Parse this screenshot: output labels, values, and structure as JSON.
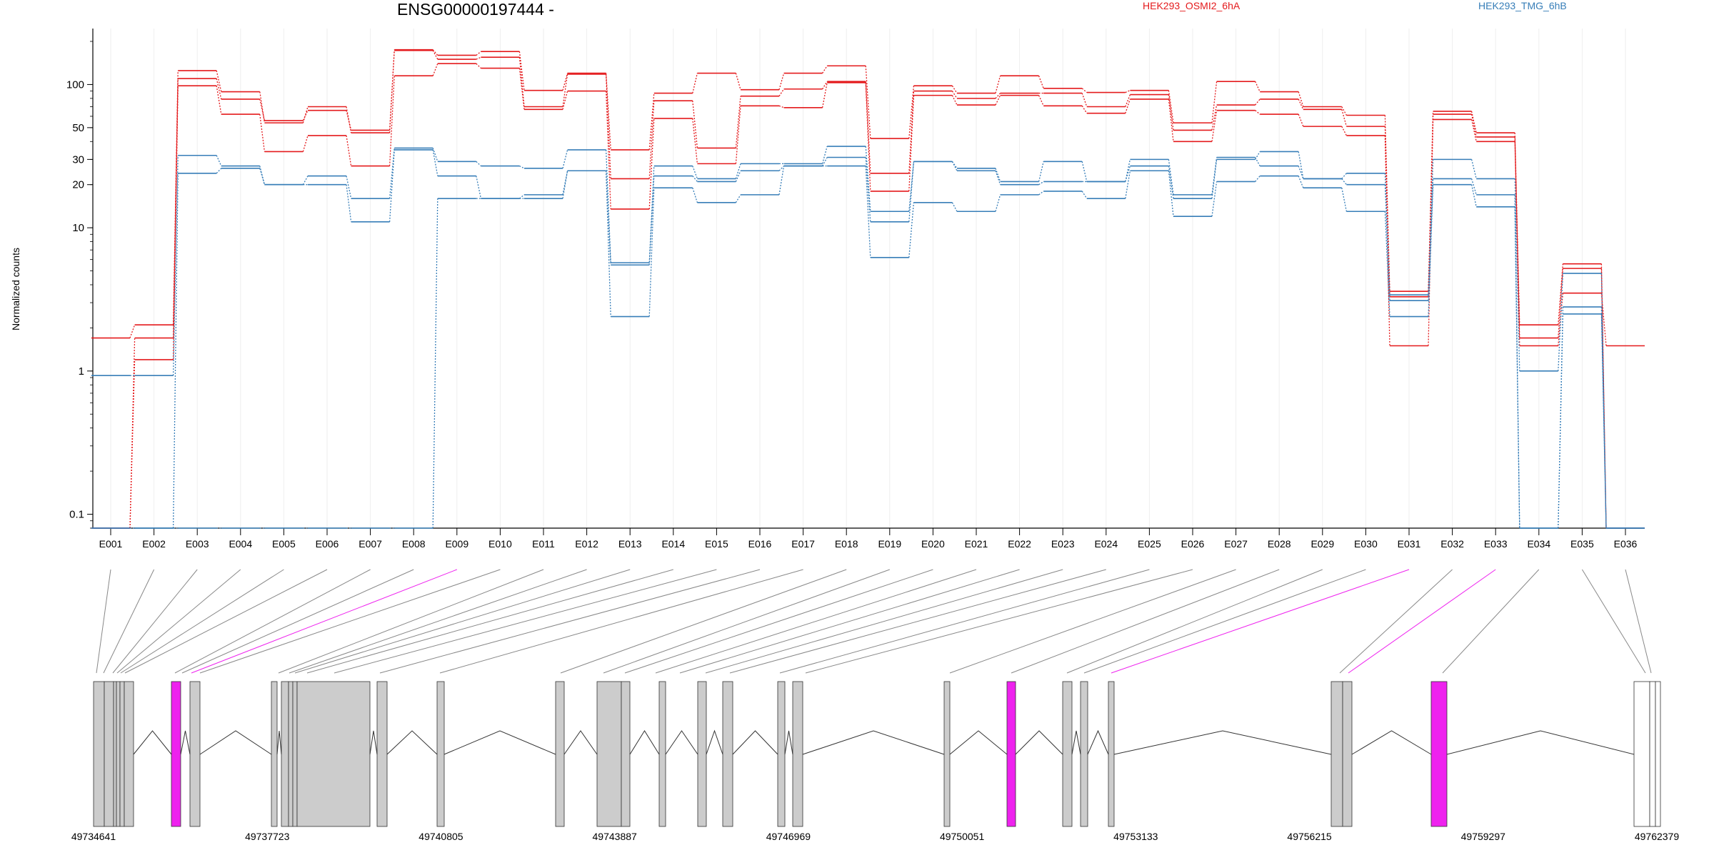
{
  "chart_data": {
    "type": "line",
    "title": "ENSG00000197444 -",
    "ylabel": "Normalized counts",
    "yscale": "log",
    "ylim": [
      0.08,
      200
    ],
    "yticks": [
      0.1,
      1,
      10,
      20,
      30,
      50,
      100
    ],
    "ytick_labels": [
      "0.1",
      "1",
      "10",
      "20",
      "30",
      "50",
      "100"
    ],
    "grid": "vertical, light",
    "categories": [
      "E001",
      "E002",
      "E003",
      "E004",
      "E005",
      "E006",
      "E007",
      "E008",
      "E009",
      "E010",
      "E011",
      "E012",
      "E013",
      "E014",
      "E015",
      "E016",
      "E017",
      "E018",
      "E019",
      "E020",
      "E021",
      "E022",
      "E023",
      "E024",
      "E025",
      "E026",
      "E027",
      "E028",
      "E029",
      "E030",
      "E031",
      "E032",
      "E033",
      "E034",
      "E035",
      "E036"
    ],
    "legend": [
      {
        "name": "HEK293_OSMI2_6hA",
        "color": "#e41a1c"
      },
      {
        "name": "HEK293_TMG_6hB",
        "color": "#377eb8"
      }
    ],
    "series": [
      {
        "group": "HEK293_OSMI2_6hA",
        "color": "#e41a1c",
        "values": [
          1.7,
          2.1,
          125,
          89,
          54,
          70,
          46,
          175,
          160,
          170,
          91,
          120,
          35,
          87,
          120,
          92,
          120,
          135,
          42,
          98,
          87,
          115,
          94,
          88,
          91,
          54,
          105,
          89,
          70,
          61,
          3.6,
          65,
          46,
          2.1,
          5.6,
          0.08
        ]
      },
      {
        "group": "HEK293_OSMI2_6hA",
        "color": "#e41a1c",
        "values": [
          0.08,
          1.7,
          110,
          79,
          56,
          66,
          48,
          173,
          150,
          155,
          70,
          118,
          22,
          77,
          36,
          83,
          93,
          105,
          24,
          90,
          80,
          87,
          87,
          70,
          85,
          48,
          72,
          79,
          67,
          51,
          3.3,
          62,
          43,
          1.7,
          5.2,
          0.08
        ]
      },
      {
        "group": "HEK293_OSMI2_6hA",
        "color": "#e41a1c",
        "values": [
          0.08,
          1.2,
          98,
          62,
          34,
          44,
          27,
          115,
          140,
          130,
          67,
          90,
          13.5,
          58,
          28,
          71,
          69,
          103,
          18,
          84,
          72,
          84,
          71,
          63,
          79,
          40,
          66,
          62,
          51,
          44,
          1.5,
          57,
          40,
          1.5,
          3.5,
          1.5
        ]
      },
      {
        "group": "HEK293_TMG_6hB",
        "color": "#377eb8",
        "values": [
          0.93,
          0.93,
          32,
          27,
          20,
          23,
          16,
          36,
          29,
          27,
          26,
          35,
          5.7,
          27,
          22,
          28,
          28,
          37,
          13,
          29,
          26,
          21,
          29,
          21,
          30,
          17,
          31,
          27,
          22,
          24,
          3.4,
          30,
          22,
          1.0,
          4.8,
          0.08
        ]
      },
      {
        "group": "HEK293_TMG_6hB",
        "color": "#377eb8",
        "values": [
          0.08,
          0.08,
          24,
          26,
          20,
          20,
          11,
          35,
          23,
          16,
          17,
          25,
          5.5,
          23,
          21,
          25,
          27,
          31,
          11,
          29,
          25,
          20,
          21,
          21,
          27,
          16,
          30,
          34,
          22,
          20,
          3.1,
          22,
          17,
          0.08,
          2.8,
          0.08
        ]
      },
      {
        "group": "HEK293_TMG_6hB",
        "color": "#377eb8",
        "values": [
          0.08,
          0.08,
          0.08,
          0.08,
          0.08,
          0.08,
          0.08,
          0.08,
          16,
          16,
          16,
          25,
          2.4,
          19,
          15,
          17,
          27,
          27,
          6.2,
          15,
          13,
          17,
          18,
          16,
          25,
          12,
          21,
          23,
          19,
          13,
          2.4,
          20,
          14,
          0.08,
          2.5,
          0.08
        ]
      }
    ],
    "gene_model": {
      "coordinate_labels": [
        "49734641",
        "49737723",
        "49740805",
        "49743887",
        "49746969",
        "49750051",
        "49753133",
        "49756215",
        "49759297",
        "49762379"
      ],
      "highlighted_exons": [
        "E009",
        "E031",
        "E033"
      ],
      "highlight_color": "#ee22ee",
      "exon_color": "#cccccc"
    }
  }
}
